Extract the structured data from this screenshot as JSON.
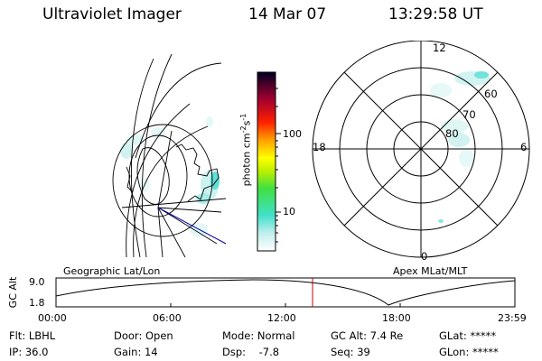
{
  "header": {
    "instrument": "Ultraviolet Imager",
    "date": "14 Mar 07",
    "time": "13:29:58 UT"
  },
  "colorbar": {
    "unit_text": "photon cm",
    "unit_exp1": "-2",
    "unit_s": "s",
    "unit_exp2": "-1",
    "tick_labels": [
      "100",
      "10"
    ]
  },
  "left_map": {
    "caption": "Geographic Lat/Lon"
  },
  "right_map": {
    "caption": "Apex MLat/MLT",
    "mlt_labels": [
      "12",
      "18",
      "6",
      "0"
    ],
    "lat_labels": [
      "60",
      "70",
      "80"
    ]
  },
  "altitude_plot": {
    "ylabel": "GC Alt",
    "yticks": [
      "9.0",
      "1.8"
    ],
    "xticks": [
      "00:00",
      "06:00",
      "12:00",
      "18:00",
      "23:59"
    ]
  },
  "status": {
    "flt_label": "Flt:",
    "flt_value": "LBHL",
    "ip_label": "IP:",
    "ip_value": "36.0",
    "door_label": "Door:",
    "door_value": "Open",
    "gain_label": "Gain:",
    "gain_value": "14",
    "mode_label": "Mode:",
    "mode_value": "Normal",
    "dsp_label": "Dsp:",
    "dsp_value": "-7.8",
    "gcalt_label": "GC Alt:",
    "gcalt_value": "7.4 Re",
    "seq_label": "Seq:",
    "seq_value": "39",
    "glat_label": "GLat:",
    "glat_value": "*****",
    "glon_label": "GLon:",
    "glon_value": "*****"
  }
}
